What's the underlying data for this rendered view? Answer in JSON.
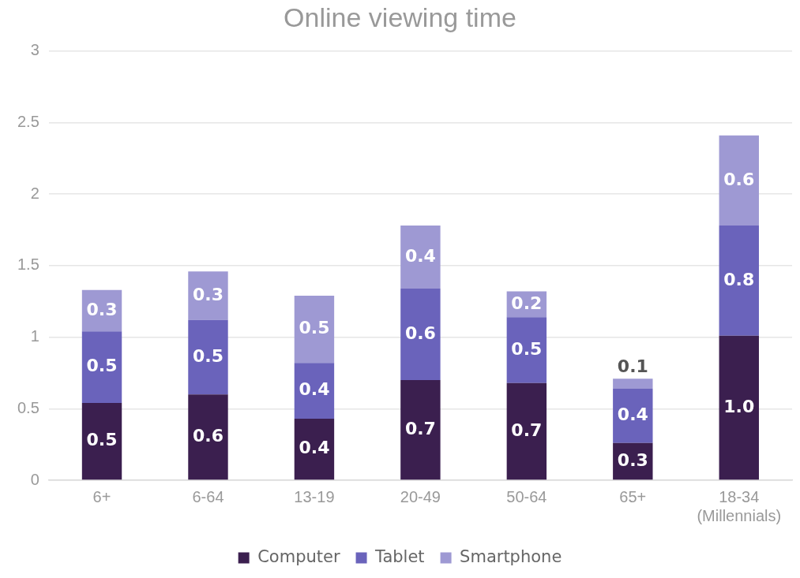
{
  "chart_data": {
    "type": "bar",
    "title": "Online viewing time",
    "stacked": true,
    "categories": [
      "6+",
      "6-64",
      "13-19",
      "20-49",
      "50-64",
      "65+",
      "18-34\n(Millennials)"
    ],
    "series": [
      {
        "name": "Computer",
        "color": "#3b1f4f",
        "values": [
          0.54,
          0.6,
          0.43,
          0.7,
          0.68,
          0.26,
          1.01
        ],
        "value_labels": [
          "0.5",
          "0.6",
          "0.4",
          "0.7",
          "0.7",
          "0.3",
          "1.0"
        ]
      },
      {
        "name": "Tablet",
        "color": "#6a63bb",
        "values": [
          0.5,
          0.52,
          0.39,
          0.64,
          0.46,
          0.38,
          0.77
        ],
        "value_labels": [
          "0.5",
          "0.5",
          "0.4",
          "0.6",
          "0.5",
          "0.4",
          "0.8"
        ]
      },
      {
        "name": "Smartphone",
        "color": "#9e99d3",
        "values": [
          0.29,
          0.34,
          0.47,
          0.44,
          0.18,
          0.07,
          0.63
        ],
        "value_labels": [
          "0.3",
          "0.3",
          "0.5",
          "0.4",
          "0.2",
          "0.1",
          "0.6"
        ]
      }
    ],
    "ylim": [
      0,
      3
    ],
    "yticks": [
      0,
      0.5,
      1,
      1.5,
      2,
      2.5,
      3
    ],
    "grid": "y",
    "legend": "bottom"
  }
}
